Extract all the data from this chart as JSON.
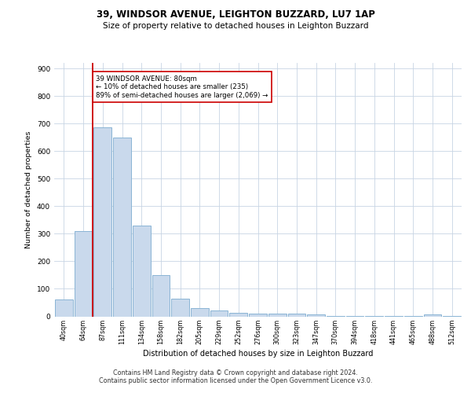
{
  "title1": "39, WINDSOR AVENUE, LEIGHTON BUZZARD, LU7 1AP",
  "title2": "Size of property relative to detached houses in Leighton Buzzard",
  "xlabel": "Distribution of detached houses by size in Leighton Buzzard",
  "ylabel": "Number of detached properties",
  "bar_labels": [
    "40sqm",
    "64sqm",
    "87sqm",
    "111sqm",
    "134sqm",
    "158sqm",
    "182sqm",
    "205sqm",
    "229sqm",
    "252sqm",
    "276sqm",
    "300sqm",
    "323sqm",
    "347sqm",
    "370sqm",
    "394sqm",
    "418sqm",
    "441sqm",
    "465sqm",
    "488sqm",
    "512sqm"
  ],
  "bar_values": [
    62,
    310,
    685,
    650,
    330,
    150,
    65,
    30,
    20,
    12,
    10,
    10,
    10,
    8,
    2,
    2,
    2,
    2,
    2,
    8,
    2
  ],
  "bar_color": "#c9d9ec",
  "bar_edgecolor": "#8ab4d4",
  "vline_x": 1.5,
  "vline_color": "#cc0000",
  "annotation_text": "39 WINDSOR AVENUE: 80sqm\n← 10% of detached houses are smaller (235)\n89% of semi-detached houses are larger (2,069) →",
  "annotation_box_color": "#ffffff",
  "annotation_box_edgecolor": "#cc0000",
  "ylim": [
    0,
    920
  ],
  "yticks": [
    0,
    100,
    200,
    300,
    400,
    500,
    600,
    700,
    800,
    900
  ],
  "footer": "Contains HM Land Registry data © Crown copyright and database right 2024.\nContains public sector information licensed under the Open Government Licence v3.0.",
  "bg_color": "#ffffff",
  "grid_color": "#c8d4e4"
}
